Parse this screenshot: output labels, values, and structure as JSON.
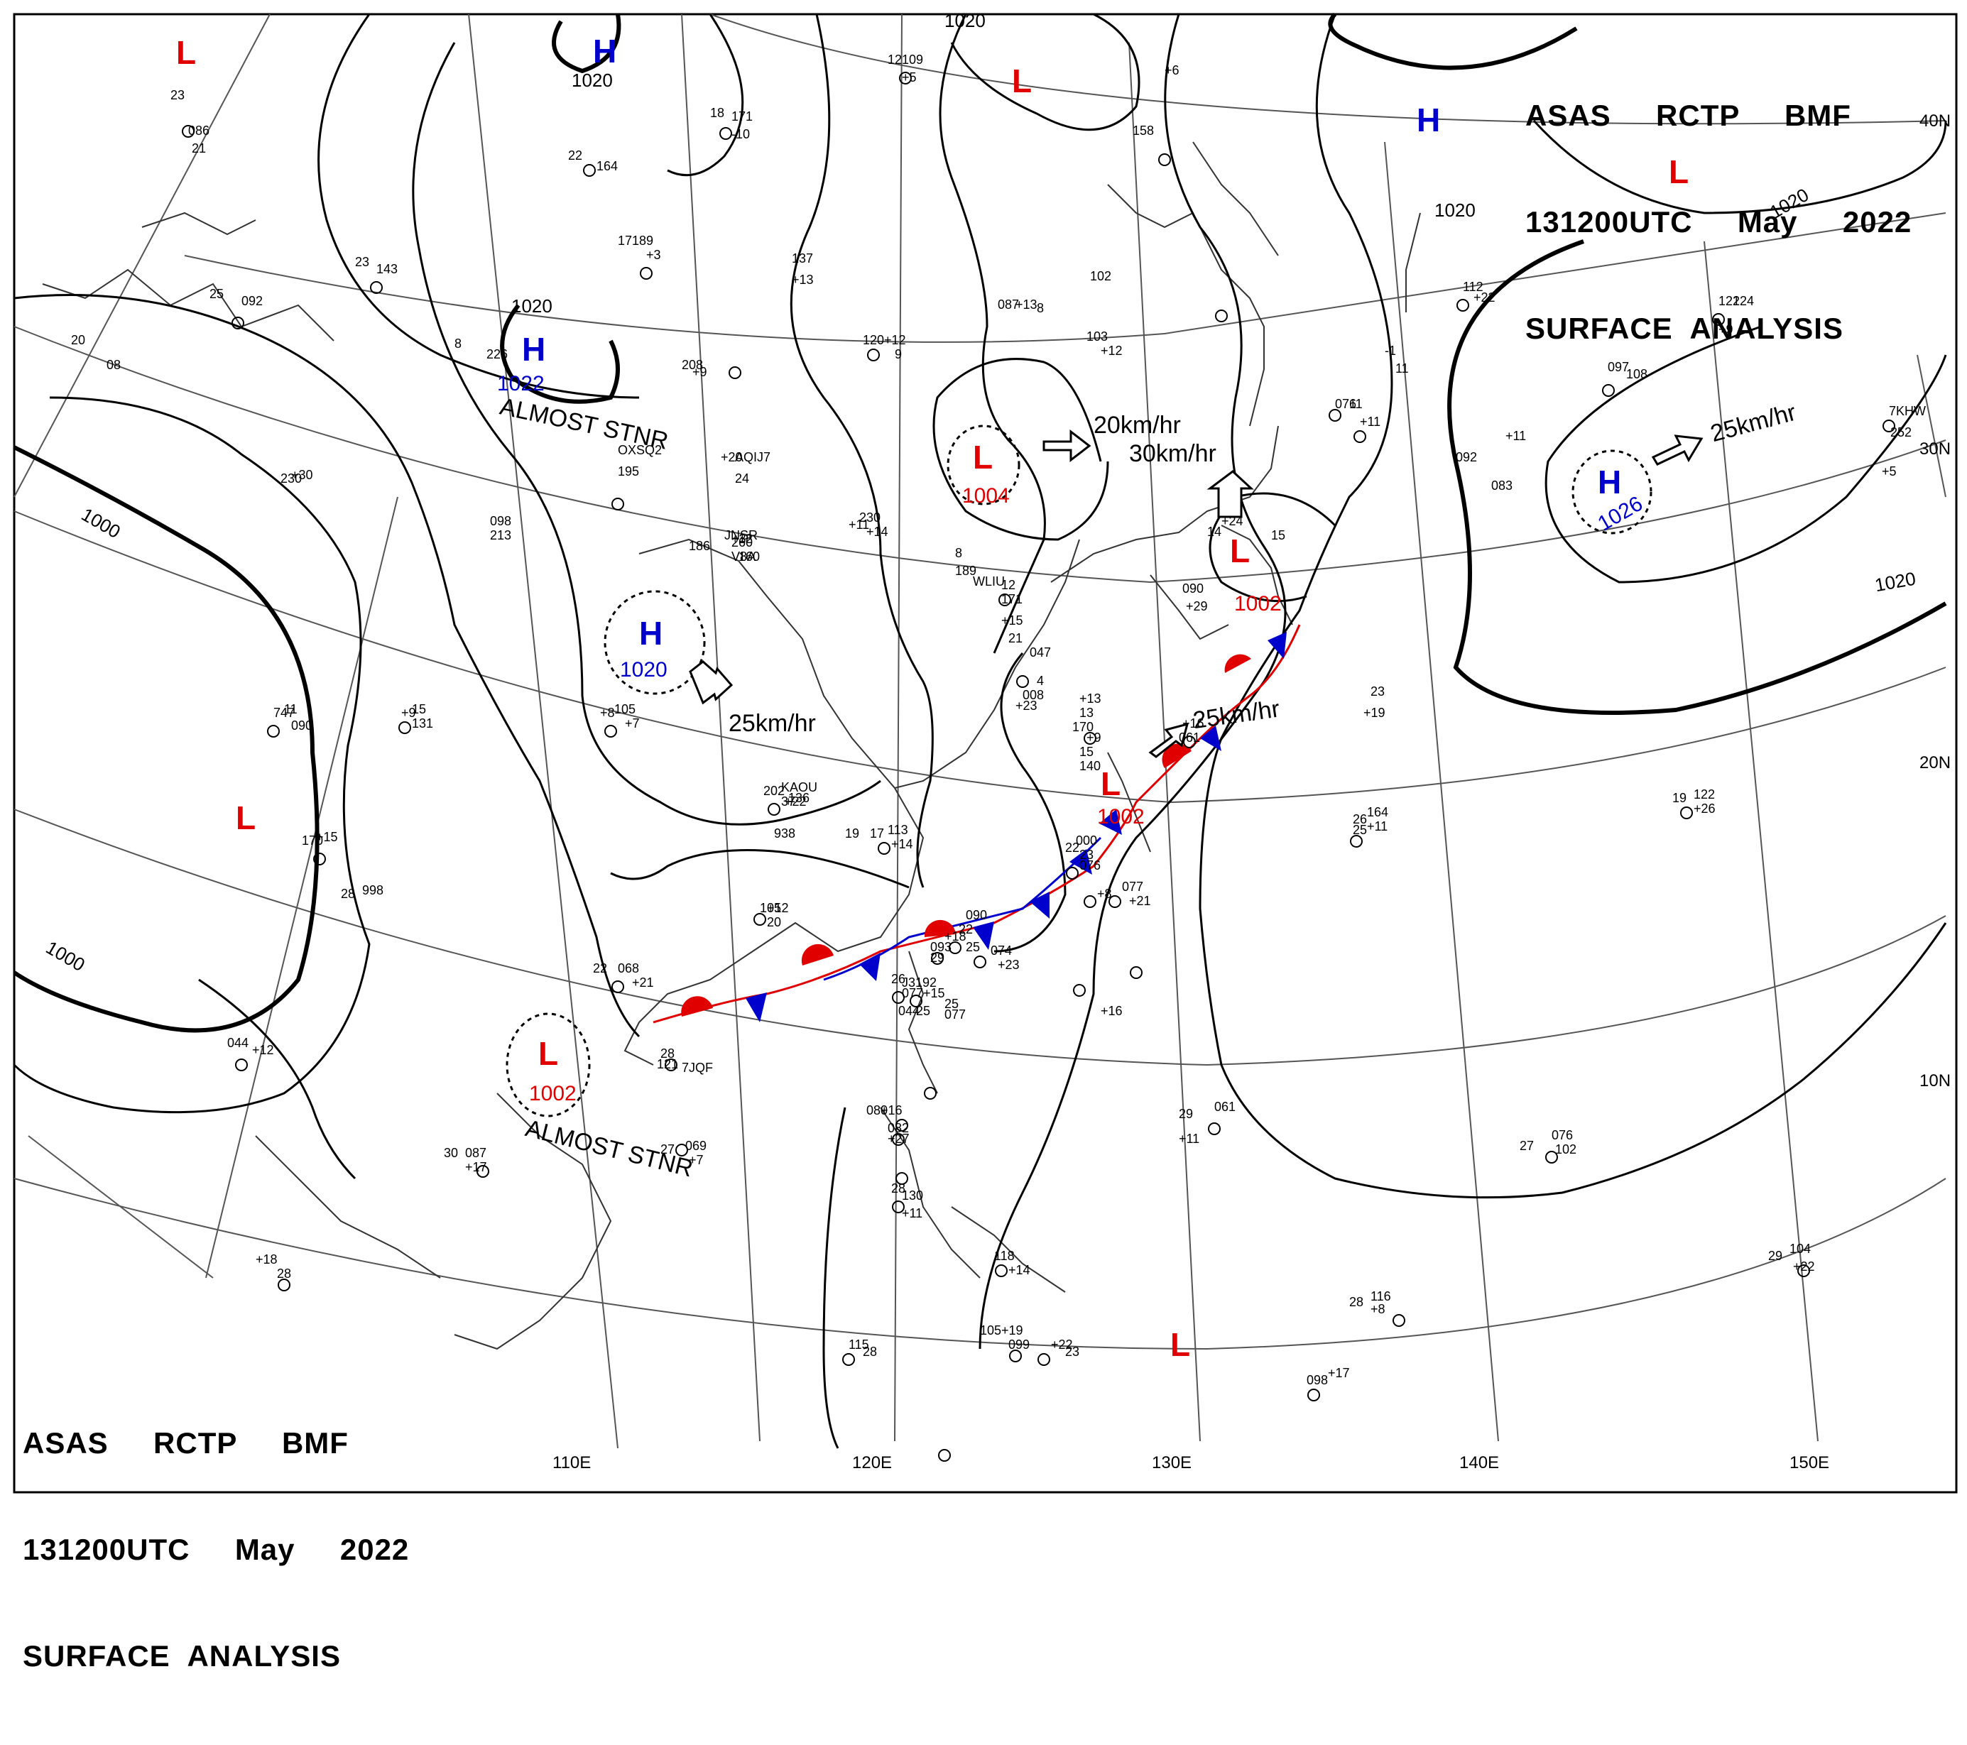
{
  "chart": {
    "header_top": [
      "ASAS     RCTP     BMF",
      "131200UTC     May     2022",
      "SURFACE  ANALYSIS"
    ],
    "header_bottom": [
      "ASAS     RCTP     BMF",
      "131200UTC     May     2022",
      "SURFACE  ANALYSIS"
    ],
    "longitude_labels": [
      "110E",
      "120E",
      "130E",
      "140E",
      "150E"
    ],
    "latitude_labels": [
      "40N",
      "30N",
      "20N",
      "10N"
    ]
  },
  "pressure_centers": [
    {
      "type": "L",
      "color": "#e00000"
    },
    {
      "type": "H",
      "value": "1020",
      "color": "#0000cc"
    },
    {
      "type": "L",
      "color": "#e00000"
    },
    {
      "type": "H",
      "color": "#0000cc"
    },
    {
      "type": "L",
      "color": "#e00000"
    },
    {
      "type": "H",
      "value": "1022",
      "color": "#0000cc"
    },
    {
      "type": "L",
      "value": "1004",
      "color": "#e00000"
    },
    {
      "type": "H",
      "value": "1026",
      "color": "#0000cc"
    },
    {
      "type": "H",
      "value": "1020",
      "color": "#0000cc"
    },
    {
      "type": "L",
      "value": "1002",
      "color": "#e00000"
    },
    {
      "type": "L",
      "value": "1002",
      "color": "#e00000"
    },
    {
      "type": "L",
      "value": "1002",
      "color": "#e00000"
    },
    {
      "type": "L",
      "color": "#e00000"
    },
    {
      "type": "L",
      "color": "#e00000"
    }
  ],
  "isobar_labels": [
    "1020",
    "1020",
    "1020",
    "1020",
    "1020",
    "1000",
    "1000"
  ],
  "motion_labels": [
    "ALMOST STNR",
    "20km/hr",
    "30km/hr",
    "25km/hr",
    "25km/hr",
    "25km/hr",
    "ALMOST STNR"
  ],
  "station_text": [
    "23",
    "086",
    "21",
    "18",
    "171",
    "-10",
    "22",
    "164",
    "17",
    "189",
    "+3",
    "12",
    "109",
    "+5",
    "23",
    "143",
    "25",
    "092",
    "20",
    "08",
    "8",
    "226",
    "208",
    "+9",
    "137",
    "+13",
    "120",
    "+12",
    "9",
    "087",
    "+13",
    "8",
    "103",
    "+12",
    "102",
    "+6",
    "158",
    "-1",
    "11",
    "076",
    "+11",
    "097",
    "108",
    "122",
    "124",
    "+9",
    "7KHW",
    "252",
    "+5",
    "230",
    "+30",
    "OXSQ2",
    "195",
    "+20",
    "AQIJ7",
    "24",
    "098",
    "213",
    "+3",
    "12",
    "160",
    "+11",
    "230",
    "+14",
    "8",
    "189",
    "+24",
    "14",
    "090",
    "+29",
    "15",
    "186",
    "JNSR",
    "260",
    "V8A",
    "WLIU",
    "12",
    "171",
    "+15",
    "21",
    "112",
    "+22",
    "11",
    "092",
    "+11",
    "083",
    "+23",
    "047",
    "4",
    "008",
    "+13",
    "13",
    "170",
    "+9",
    "15",
    "140",
    "+16",
    "061",
    "+19",
    "23",
    "747",
    "11",
    "090",
    "+9",
    "15",
    "131",
    "+8",
    "105",
    "+7",
    "202",
    "KAOU",
    "37",
    "938",
    "19",
    "136",
    "+22",
    "17",
    "113",
    "+14",
    "19",
    "122",
    "+26",
    "26",
    "164",
    "+11",
    "25",
    "170",
    "+15",
    "28",
    "998",
    "22",
    "000",
    "23",
    "076",
    "+8",
    "077",
    "+21",
    "105",
    "+12",
    "20",
    "090",
    "+18",
    "22",
    "093",
    "25",
    "074",
    "+23",
    "22",
    "068",
    "+21",
    "26",
    "077",
    "+15",
    "J3192",
    "25",
    "077",
    "+16",
    "29",
    "044",
    "25",
    "044",
    "+12",
    "28",
    "121",
    "7JQF",
    "29",
    "061",
    "+11",
    "27",
    "069",
    "+7",
    "30",
    "087",
    "+17",
    "080",
    "+16",
    "082",
    "+27",
    "28",
    "130",
    "+11",
    "27",
    "076",
    "102",
    "+18",
    "28",
    "118",
    "+14",
    "28",
    "116",
    "+8",
    "29",
    "104",
    "+22",
    "105",
    "+19",
    "099",
    "+22",
    "23",
    "115",
    "28",
    "098",
    "+17"
  ]
}
